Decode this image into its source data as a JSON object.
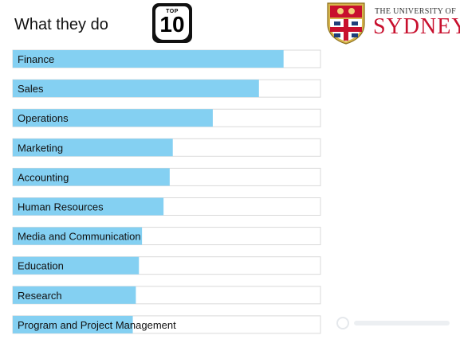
{
  "header": {
    "title": "What they do",
    "badge_top": "TOP",
    "badge_number": "10",
    "university_line1": "THE UNIVERSITY OF",
    "university_line2": "SYDNEY"
  },
  "colors": {
    "bar_fill": "#84d0f2",
    "track_border": "#d9d9d9",
    "crest_red": "#c8102e",
    "text": "#111111"
  },
  "chart_data": {
    "type": "bar",
    "orientation": "horizontal",
    "categories": [
      "Finance",
      "Sales",
      "Operations",
      "Marketing",
      "Accounting",
      "Human Resources",
      "Media and Communication",
      "Education",
      "Research",
      "Program and Project Management"
    ],
    "values": [
      88,
      80,
      65,
      52,
      51,
      49,
      42,
      41,
      40,
      39
    ],
    "xlim": [
      0,
      100
    ],
    "title": "What they do",
    "grid": false,
    "legend": "none"
  }
}
